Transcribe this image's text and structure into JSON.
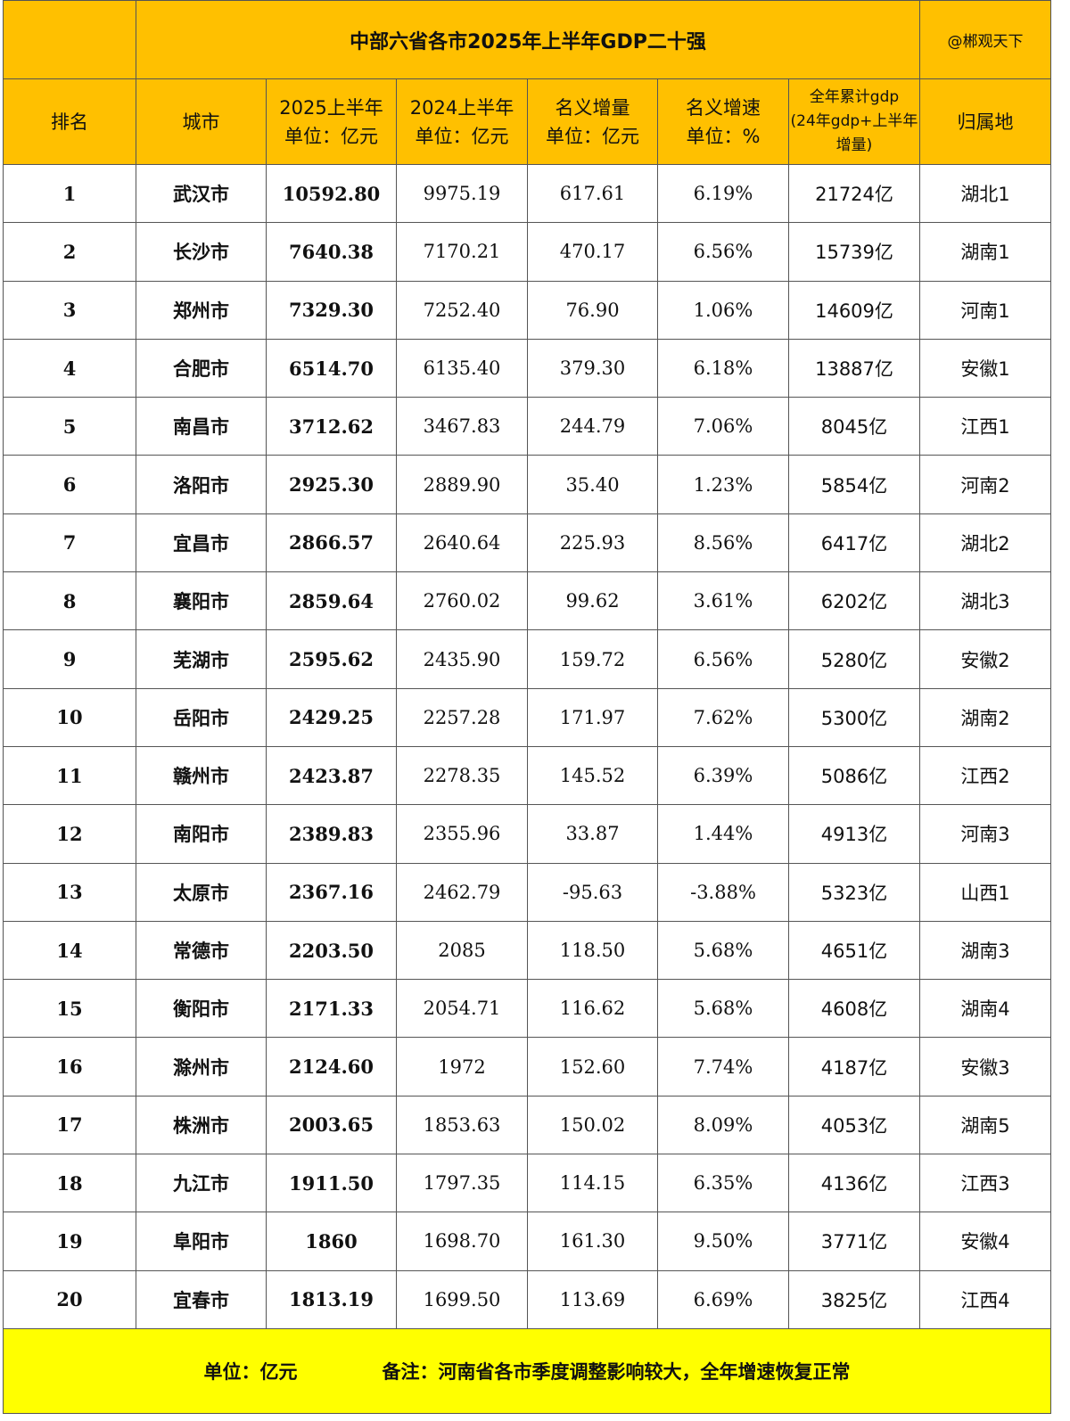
{
  "title": "中部六省各市2025年上半年GDP二十强",
  "credit": "@郴观天下",
  "colors": {
    "header_bg": "#FFC000",
    "footer_bg": "#FFFF00"
  },
  "headers": [
    "排名",
    "城市",
    "2025上半年\n单位：亿元",
    "2024上半年\n单位：亿元",
    "名义增量\n单位：亿元",
    "名义增速\n单位：%",
    "全年累计gdp\n(24年gdp+上半年增量)",
    "归属地"
  ],
  "rows": [
    [
      "1",
      "武汉市",
      "10592.80",
      "9975.19",
      "617.61",
      "6.19%",
      "21724亿",
      "湖北1"
    ],
    [
      "2",
      "长沙市",
      "7640.38",
      "7170.21",
      "470.17",
      "6.56%",
      "15739亿",
      "湖南1"
    ],
    [
      "3",
      "郑州市",
      "7329.30",
      "7252.40",
      "76.90",
      "1.06%",
      "14609亿",
      "河南1"
    ],
    [
      "4",
      "合肥市",
      "6514.70",
      "6135.40",
      "379.30",
      "6.18%",
      "13887亿",
      "安徽1"
    ],
    [
      "5",
      "南昌市",
      "3712.62",
      "3467.83",
      "244.79",
      "7.06%",
      "8045亿",
      "江西1"
    ],
    [
      "6",
      "洛阳市",
      "2925.30",
      "2889.90",
      "35.40",
      "1.23%",
      "5854亿",
      "河南2"
    ],
    [
      "7",
      "宜昌市",
      "2866.57",
      "2640.64",
      "225.93",
      "8.56%",
      "6417亿",
      "湖北2"
    ],
    [
      "8",
      "襄阳市",
      "2859.64",
      "2760.02",
      "99.62",
      "3.61%",
      "6202亿",
      "湖北3"
    ],
    [
      "9",
      "芜湖市",
      "2595.62",
      "2435.90",
      "159.72",
      "6.56%",
      "5280亿",
      "安徽2"
    ],
    [
      "10",
      "岳阳市",
      "2429.25",
      "2257.28",
      "171.97",
      "7.62%",
      "5300亿",
      "湖南2"
    ],
    [
      "11",
      "赣州市",
      "2423.87",
      "2278.35",
      "145.52",
      "6.39%",
      "5086亿",
      "江西2"
    ],
    [
      "12",
      "南阳市",
      "2389.83",
      "2355.96",
      "33.87",
      "1.44%",
      "4913亿",
      "河南3"
    ],
    [
      "13",
      "太原市",
      "2367.16",
      "2462.79",
      "-95.63",
      "-3.88%",
      "5323亿",
      "山西1"
    ],
    [
      "14",
      "常德市",
      "2203.50",
      "2085",
      "118.50",
      "5.68%",
      "4651亿",
      "湖南3"
    ],
    [
      "15",
      "衡阳市",
      "2171.33",
      "2054.71",
      "116.62",
      "5.68%",
      "4608亿",
      "湖南4"
    ],
    [
      "16",
      "滁州市",
      "2124.60",
      "1972",
      "152.60",
      "7.74%",
      "4187亿",
      "安徽3"
    ],
    [
      "17",
      "株洲市",
      "2003.65",
      "1853.63",
      "150.02",
      "8.09%",
      "4053亿",
      "湖南5"
    ],
    [
      "18",
      "九江市",
      "1911.50",
      "1797.35",
      "114.15",
      "6.35%",
      "4136亿",
      "江西3"
    ],
    [
      "19",
      "阜阳市",
      "1860",
      "1698.70",
      "161.30",
      "9.50%",
      "3771亿",
      "安徽4"
    ],
    [
      "20",
      "宜春市",
      "1813.19",
      "1699.50",
      "113.69",
      "6.69%",
      "3825亿",
      "江西4"
    ]
  ],
  "footer": {
    "unit": "单位：亿元",
    "note": "备注：河南省各市季度调整影响较大，全年增速恢复正常"
  }
}
